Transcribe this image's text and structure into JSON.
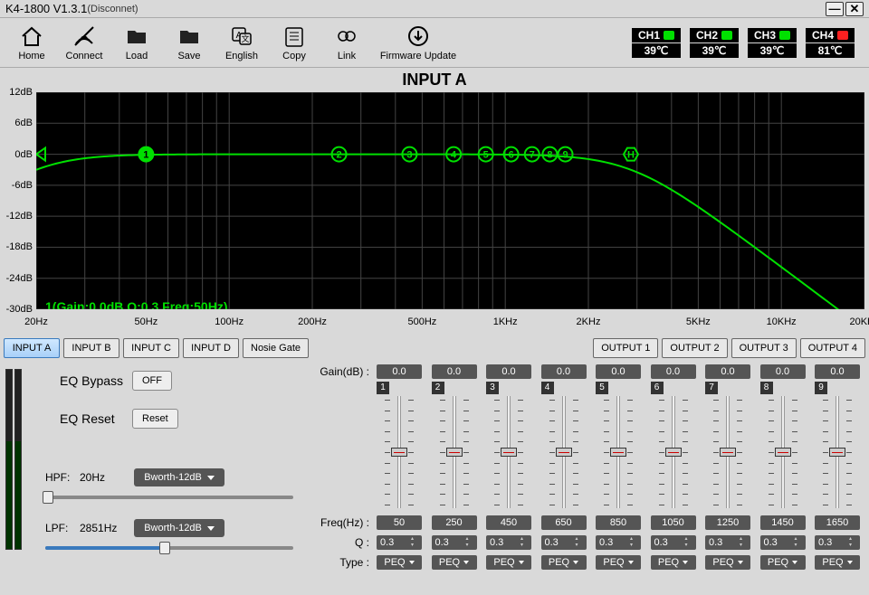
{
  "title": "K4-1800 V1.3.1",
  "connection_status": "(Disconnet)",
  "toolbar": [
    {
      "id": "home",
      "label": "Home"
    },
    {
      "id": "connect",
      "label": "Connect"
    },
    {
      "id": "load",
      "label": "Load"
    },
    {
      "id": "save",
      "label": "Save"
    },
    {
      "id": "lang",
      "label": "English"
    },
    {
      "id": "copy",
      "label": "Copy"
    },
    {
      "id": "link",
      "label": "Link"
    },
    {
      "id": "fw",
      "label": "Firmware Update"
    }
  ],
  "channels": [
    {
      "name": "CH1",
      "temp": "39℃",
      "led": "#00e000"
    },
    {
      "name": "CH2",
      "temp": "39℃",
      "led": "#00e000"
    },
    {
      "name": "CH3",
      "temp": "39℃",
      "led": "#00e000"
    },
    {
      "name": "CH4",
      "temp": "81℃",
      "led": "#ff2020"
    }
  ],
  "section_title": "INPUT A",
  "graph": {
    "y_ticks_db": [
      12,
      6,
      0,
      -6,
      -12,
      -18,
      -24,
      -30
    ],
    "x_ticks": [
      {
        "hz": 20,
        "label": "20Hz"
      },
      {
        "hz": 50,
        "label": "50Hz"
      },
      {
        "hz": 100,
        "label": "100Hz"
      },
      {
        "hz": 200,
        "label": "200Hz"
      },
      {
        "hz": 500,
        "label": "500Hz"
      },
      {
        "hz": 1000,
        "label": "1KHz"
      },
      {
        "hz": 2000,
        "label": "2KHz"
      },
      {
        "hz": 5000,
        "label": "5KHz"
      },
      {
        "hz": 10000,
        "label": "10KHz"
      },
      {
        "hz": 20000,
        "label": "20KHz"
      }
    ],
    "x_min_hz": 20,
    "x_max_hz": 20000,
    "y_min_db": -30,
    "y_max_db": 12,
    "curve_color": "#00e000",
    "markers": [
      {
        "n": "1",
        "hz": 50,
        "db": 0,
        "filled": true
      },
      {
        "n": "2",
        "hz": 250,
        "db": 0
      },
      {
        "n": "3",
        "hz": 450,
        "db": 0
      },
      {
        "n": "4",
        "hz": 650,
        "db": 0
      },
      {
        "n": "5",
        "hz": 850,
        "db": 0
      },
      {
        "n": "6",
        "hz": 1050,
        "db": 0
      },
      {
        "n": "7",
        "hz": 1250,
        "db": 0
      },
      {
        "n": "8",
        "hz": 1450,
        "db": 0
      },
      {
        "n": "9",
        "hz": 1650,
        "db": 0
      },
      {
        "n": "H",
        "hz": 2851,
        "db": 0,
        "hex": true
      }
    ],
    "info_text": "1(Gain:0.0dB Q:0.3 Freq:50Hz)",
    "hpf_hz": 20,
    "lpf_hz": 2851
  },
  "tabs_left": [
    "INPUT A",
    "INPUT B",
    "INPUT C",
    "INPUT D",
    "Nosie Gate"
  ],
  "tabs_right": [
    "OUTPUT 1",
    "OUTPUT 2",
    "OUTPUT 3",
    "OUTPUT 4"
  ],
  "active_tab": "INPUT A",
  "eq_bypass": {
    "label": "EQ Bypass",
    "btn": "OFF"
  },
  "eq_reset": {
    "label": "EQ Reset",
    "btn": "Reset"
  },
  "hpf": {
    "label": "HPF:",
    "value": "20Hz",
    "type": "Bworth-12dB",
    "slider_pct": 1
  },
  "lpf": {
    "label": "LPF:",
    "value": "2851Hz",
    "type": "Bworth-12dB",
    "slider_pct": 48
  },
  "eq_labels": {
    "gain": "Gain(dB) :",
    "freq": "Freq(Hz) :",
    "q": "Q :",
    "type": "Type :"
  },
  "bands": [
    {
      "n": "1",
      "gain": "0.0",
      "freq": "50",
      "q": "0.3",
      "type": "PEQ"
    },
    {
      "n": "2",
      "gain": "0.0",
      "freq": "250",
      "q": "0.3",
      "type": "PEQ"
    },
    {
      "n": "3",
      "gain": "0.0",
      "freq": "450",
      "q": "0.3",
      "type": "PEQ"
    },
    {
      "n": "4",
      "gain": "0.0",
      "freq": "650",
      "q": "0.3",
      "type": "PEQ"
    },
    {
      "n": "5",
      "gain": "0.0",
      "freq": "850",
      "q": "0.3",
      "type": "PEQ"
    },
    {
      "n": "6",
      "gain": "0.0",
      "freq": "1050",
      "q": "0.3",
      "type": "PEQ"
    },
    {
      "n": "7",
      "gain": "0.0",
      "freq": "1250",
      "q": "0.3",
      "type": "PEQ"
    },
    {
      "n": "8",
      "gain": "0.0",
      "freq": "1450",
      "q": "0.3",
      "type": "PEQ"
    },
    {
      "n": "9",
      "gain": "0.0",
      "freq": "1650",
      "q": "0.3",
      "type": "PEQ"
    }
  ]
}
